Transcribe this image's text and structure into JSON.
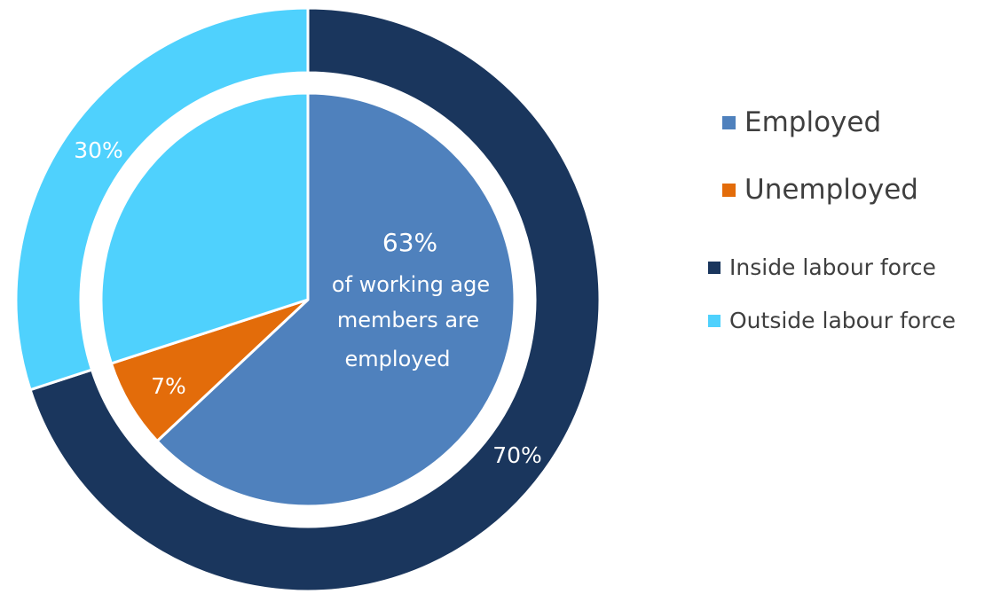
{
  "chart_data": [
    {
      "type": "pie",
      "ring": "outer",
      "categories": [
        "Inside labour force",
        "Outside labour force"
      ],
      "values": [
        70,
        30
      ],
      "value_labels": [
        "70%",
        "30%"
      ],
      "colors": [
        "#1a365d",
        "#4fd1fd"
      ]
    },
    {
      "type": "pie",
      "ring": "inner",
      "categories": [
        "Employed",
        "Unemployed",
        "Outside labour force"
      ],
      "values": [
        63,
        7,
        30
      ],
      "value_labels": [
        "",
        "7%",
        ""
      ],
      "colors": [
        "#4f81bd",
        "#e36c0a",
        "#4fd1fd"
      ]
    }
  ],
  "center_note": {
    "value": "63%",
    "lines": [
      "of working age",
      "members are",
      "employed"
    ]
  },
  "legend": {
    "placement": "right",
    "items": [
      {
        "label": "Employed",
        "color": "#4f81bd"
      },
      {
        "label": "Unemployed",
        "color": "#e36c0a"
      },
      {
        "label": "Inside labour force",
        "color": "#1a365d"
      },
      {
        "label": "Outside labour force",
        "color": "#4fd1fd"
      }
    ]
  }
}
